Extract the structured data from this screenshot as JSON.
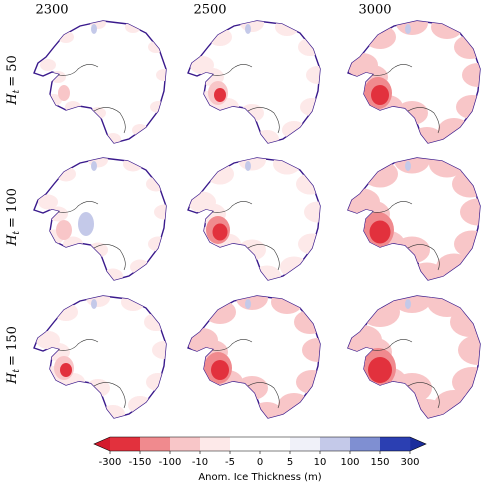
{
  "columns": [
    "2300",
    "2500",
    "3000"
  ],
  "rows": [
    {
      "symbol": "H",
      "subscript": "t",
      "text": "= 50"
    },
    {
      "symbol": "H",
      "subscript": "t",
      "text": "= 100"
    },
    {
      "symbol": "H",
      "subscript": "t",
      "text": "= 150"
    }
  ],
  "colorbar": {
    "label": "Anom. Ice Thickness (m)",
    "ticks": [
      -300,
      -150,
      -100,
      -10,
      -5,
      0,
      5,
      10,
      100,
      150,
      300
    ],
    "colors": [
      "#e2313d",
      "#f08a8e",
      "#f8c6c8",
      "#fde9e9",
      "#ffffff",
      "#ffffff",
      "#f0f1f9",
      "#c4c9e9",
      "#7f8fd2",
      "#2b3fb2"
    ],
    "extend_colors": [
      "#d41a2c",
      "#1b2d9c"
    ]
  }
}
